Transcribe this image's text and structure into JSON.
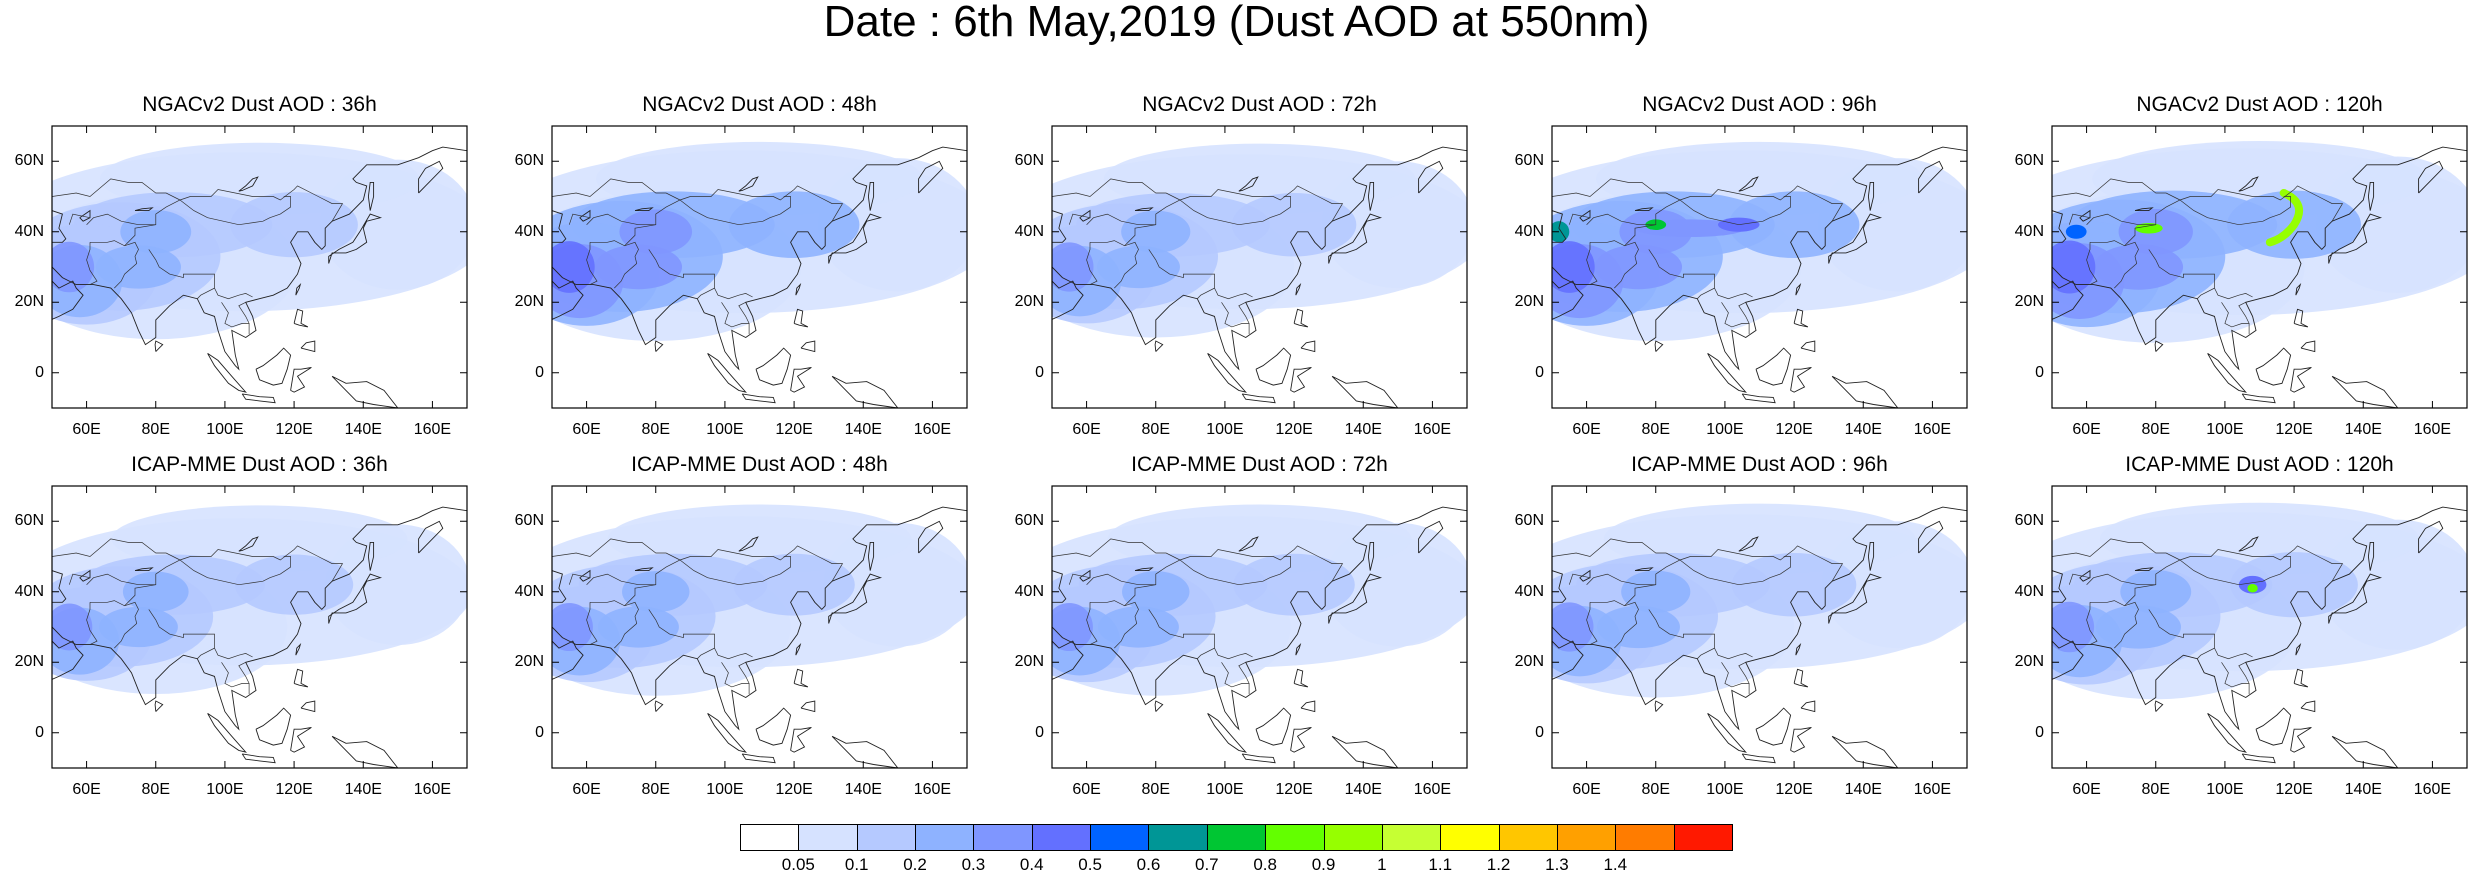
{
  "title": "Date : 6th May,2019 (Dust AOD at 550nm)",
  "panels": [
    {
      "title": "NGACv2 Dust AOD : 36h",
      "model": "NGACv2",
      "lead": "36h",
      "intensity": 0.55,
      "hotspots": []
    },
    {
      "title": "NGACv2 Dust AOD : 48h",
      "model": "NGACv2",
      "lead": "48h",
      "intensity": 0.6,
      "hotspots": []
    },
    {
      "title": "NGACv2 Dust AOD : 72h",
      "model": "NGACv2",
      "lead": "72h",
      "intensity": 0.5,
      "hotspots": []
    },
    {
      "title": "NGACv2 Dust AOD : 96h",
      "model": "NGACv2",
      "lead": "96h",
      "intensity": 0.6,
      "hotspots": [
        "band"
      ]
    },
    {
      "title": "NGACv2 Dust AOD : 120h",
      "model": "NGACv2",
      "lead": "120h",
      "intensity": 0.65,
      "hotspots": [
        "arc"
      ]
    },
    {
      "title": "ICAP-MME Dust AOD : 36h",
      "model": "ICAP-MME",
      "lead": "36h",
      "intensity": 0.4,
      "hotspots": []
    },
    {
      "title": "ICAP-MME Dust AOD : 48h",
      "model": "ICAP-MME",
      "lead": "48h",
      "intensity": 0.45,
      "hotspots": []
    },
    {
      "title": "ICAP-MME Dust AOD : 72h",
      "model": "ICAP-MME",
      "lead": "72h",
      "intensity": 0.45,
      "hotspots": []
    },
    {
      "title": "ICAP-MME Dust AOD : 96h",
      "model": "ICAP-MME",
      "lead": "96h",
      "intensity": 0.5,
      "hotspots": []
    },
    {
      "title": "ICAP-MME Dust AOD : 120h",
      "model": "ICAP-MME",
      "lead": "120h",
      "intensity": 0.55,
      "hotspots": [
        "spot"
      ]
    }
  ],
  "lat_ticks": [
    "60N",
    "40N",
    "20N",
    "0"
  ],
  "lat_values": [
    60,
    40,
    20,
    0
  ],
  "lon_ticks": [
    "60E",
    "80E",
    "100E",
    "120E",
    "140E",
    "160E"
  ],
  "lon_values": [
    60,
    80,
    100,
    120,
    140,
    160
  ],
  "map_extent": {
    "lon_min": 50,
    "lon_max": 170,
    "lat_min": -10,
    "lat_max": 70
  },
  "colorbar": {
    "labels": [
      "0.05",
      "0.1",
      "0.2",
      "0.3",
      "0.4",
      "0.5",
      "0.6",
      "0.7",
      "0.8",
      "0.9",
      "1",
      "1.1",
      "1.2",
      "1.3",
      "1.4"
    ],
    "colors": [
      "#ffffff",
      "#d6e2ff",
      "#b5c9ff",
      "#8eb2ff",
      "#7f96ff",
      "#6370ff",
      "#0063ff",
      "#009696",
      "#00c633",
      "#63ff00",
      "#96ff00",
      "#c6ff33",
      "#ffff00",
      "#ffc600",
      "#ffa000",
      "#ff7c00",
      "#ff1900"
    ]
  }
}
